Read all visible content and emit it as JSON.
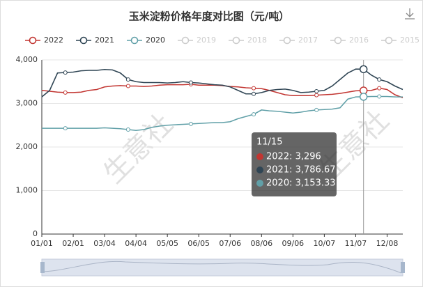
{
  "chart_data": {
    "type": "line",
    "title": "玉米淀粉价格年度对比图（元/吨）",
    "categories": [
      "01/01",
      null,
      null,
      null,
      "02/01",
      null,
      null,
      null,
      "03/04",
      null,
      null,
      null,
      "04/04",
      null,
      null,
      null,
      "05/05",
      null,
      null,
      null,
      "06/05",
      null,
      null,
      null,
      "07/06",
      null,
      null,
      null,
      "08/06",
      null,
      null,
      null,
      "09/06",
      null,
      null,
      null,
      "10/07",
      null,
      null,
      null,
      "11/07",
      null,
      null,
      null,
      "12/08",
      null,
      null
    ],
    "series": [
      {
        "name": "2022",
        "color": "#c23531",
        "values": [
          3300,
          3280,
          3260,
          3250,
          3250,
          3260,
          3300,
          3320,
          3380,
          3400,
          3410,
          3400,
          3400,
          3390,
          3400,
          3420,
          3430,
          3430,
          3430,
          3440,
          3420,
          3420,
          3420,
          3410,
          3390,
          3380,
          3360,
          3350,
          3340,
          3300,
          3250,
          3200,
          3180,
          3180,
          3180,
          3190,
          3200,
          3210,
          3230,
          3260,
          3290,
          3296,
          3300,
          3350,
          3320,
          3200,
          3130
        ]
      },
      {
        "name": "2021",
        "color": "#2f4554",
        "values": [
          3150,
          3300,
          3700,
          3710,
          3720,
          3750,
          3760,
          3760,
          3780,
          3770,
          3700,
          3550,
          3500,
          3480,
          3480,
          3480,
          3470,
          3480,
          3500,
          3480,
          3470,
          3450,
          3430,
          3420,
          3380,
          3300,
          3220,
          3220,
          3250,
          3300,
          3320,
          3330,
          3300,
          3250,
          3260,
          3280,
          3300,
          3400,
          3550,
          3700,
          3790,
          3786.67,
          3650,
          3550,
          3500,
          3400,
          3320
        ]
      },
      {
        "name": "2020",
        "color": "#61a0a8",
        "values": [
          2430,
          2430,
          2430,
          2430,
          2430,
          2430,
          2430,
          2430,
          2440,
          2430,
          2420,
          2400,
          2380,
          2400,
          2450,
          2480,
          2500,
          2510,
          2520,
          2530,
          2540,
          2550,
          2560,
          2560,
          2580,
          2650,
          2700,
          2750,
          2850,
          2830,
          2820,
          2800,
          2780,
          2800,
          2830,
          2850,
          2860,
          2870,
          2900,
          3100,
          3150,
          3153.33,
          3160,
          3160,
          3160,
          3150,
          3150
        ]
      }
    ],
    "legend_inactive": [
      "2019",
      "2018",
      "2017",
      "2016",
      "2015"
    ],
    "ylim": [
      0,
      4000
    ],
    "yticks": [
      0,
      {
        "value": 1000,
        "label": "1,000"
      },
      {
        "value": 2000,
        "label": "2,000"
      },
      {
        "value": 3000,
        "label": "3,000"
      },
      {
        "value": 4000,
        "label": "4,000"
      }
    ],
    "grid": true,
    "tooltip": {
      "category": "11/15",
      "index": 41,
      "items": [
        "2022: 3,296",
        "2021: 3,786.67",
        "2020: 3,153.33"
      ]
    },
    "watermark": [
      "生意社",
      "生意社"
    ]
  }
}
